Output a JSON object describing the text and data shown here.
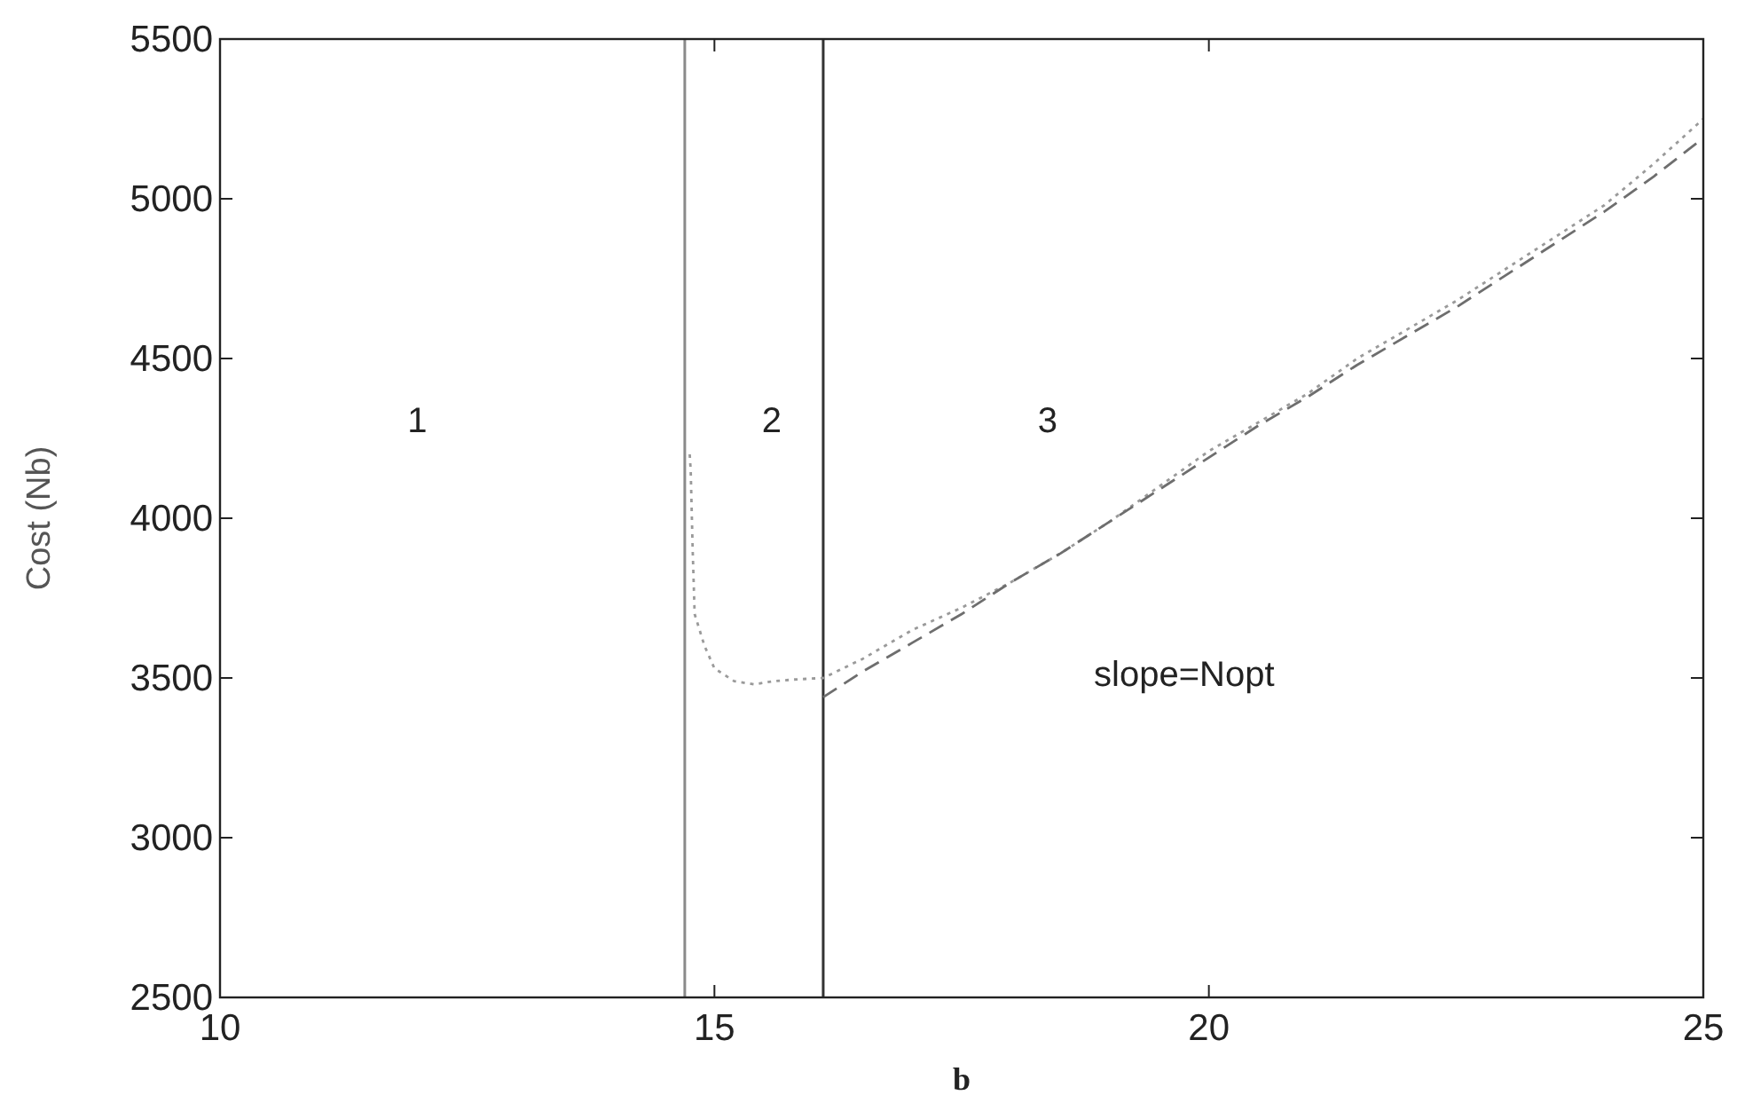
{
  "chart_data": {
    "type": "line",
    "xlabel": "b",
    "ylabel": "Cost (Nb)",
    "xlim": [
      10,
      25
    ],
    "ylim": [
      2500,
      5500
    ],
    "xticks": [
      10,
      15,
      20,
      25
    ],
    "yticks": [
      2500,
      3000,
      3500,
      4000,
      4500,
      5000,
      5500
    ],
    "grid": false,
    "series": [
      {
        "color": "#9a9a9a",
        "line_style": "dotted",
        "x": [
          14.75,
          14.76,
          14.78,
          14.8,
          14.9,
          15.0,
          15.2,
          15.4,
          15.6,
          15.8,
          16.1,
          16.5,
          17,
          17.5,
          18,
          18.5,
          19,
          19.5,
          20,
          20.5,
          21,
          21.5,
          22,
          22.5,
          23,
          23.5,
          24,
          24.5,
          25
        ],
        "values": [
          4200,
          4150,
          3900,
          3700,
          3600,
          3530,
          3490,
          3480,
          3490,
          3495,
          3500,
          3560,
          3650,
          3720,
          3800,
          3890,
          3990,
          4100,
          4210,
          4300,
          4390,
          4500,
          4590,
          4680,
          4780,
          4880,
          4980,
          5110,
          5250
        ]
      },
      {
        "color": "#6e6e6e",
        "line_style": "dashed",
        "x": [
          16.1,
          16.5,
          17,
          17.5,
          18,
          18.5,
          19,
          19.5,
          20,
          20.5,
          21,
          21.5,
          22,
          22.5,
          23,
          23.5,
          24,
          24.5,
          25
        ],
        "values": [
          3440,
          3520,
          3610,
          3700,
          3800,
          3890,
          3990,
          4090,
          4190,
          4290,
          4380,
          4480,
          4570,
          4660,
          4760,
          4860,
          4960,
          5070,
          5190
        ]
      }
    ],
    "ref_lines": [
      {
        "axis": "x",
        "value": 14.7,
        "color": "#8a8a8a"
      },
      {
        "axis": "x",
        "value": 16.1,
        "color": "#333333"
      }
    ],
    "annotations": [
      "1",
      "2",
      "3",
      "slope=Nopt"
    ]
  }
}
